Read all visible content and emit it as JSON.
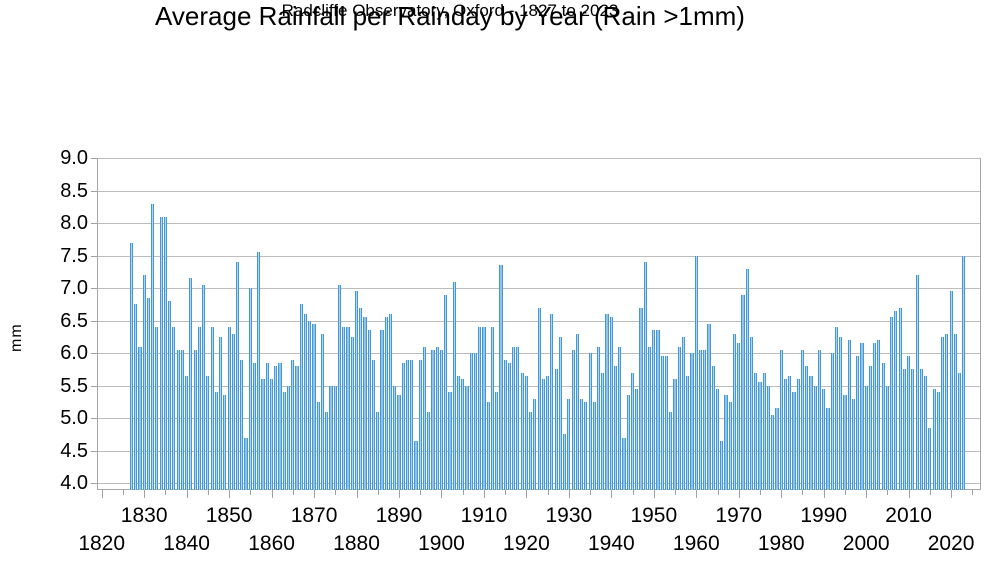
{
  "page": {
    "background": "#ffffff"
  },
  "chart_data": {
    "type": "bar",
    "title": "Average Rainfall per Rainday by Year (Rain >1mm)",
    "subtitle": "Radcliffe Observatory, Oxford - 1827 to 2023",
    "xlabel": "",
    "ylabel": "mm",
    "ylim": [
      3.9,
      9.0
    ],
    "xlim": [
      1820,
      2025
    ],
    "grid": "horizontal gridlines every 0.5",
    "legend_position": "none",
    "bar_color": "#4797d0",
    "bar_highlight_color": "#b9e2f8",
    "grid_color": "#bcbcbc",
    "axis_color": "#a6a6a6",
    "text_color": "#000000",
    "y_tick_values": [
      9.0,
      8.5,
      8.0,
      7.5,
      7.0,
      6.5,
      6.0,
      5.5,
      5.0,
      4.5,
      4.0
    ],
    "y_tick_labels": [
      "9.0",
      "8.5",
      "8.0",
      "7.5",
      "7.0",
      "6.5",
      "6.0",
      "5.5",
      "5.0",
      "4.5",
      "4.0"
    ],
    "x_label_rows": {
      "upper": [
        1830,
        1850,
        1870,
        1890,
        1910,
        1930,
        1950,
        1970,
        1990,
        2010
      ],
      "lower": [
        1820,
        1840,
        1860,
        1880,
        1900,
        1920,
        1940,
        1960,
        1980,
        2000,
        2020
      ]
    },
    "x_tick_minor_step": 5,
    "x_tick_major_step": 10,
    "year_start": 1827,
    "year_end": 2023,
    "values": [
      7.7,
      6.75,
      6.1,
      7.2,
      6.85,
      8.3,
      6.4,
      8.1,
      8.1,
      6.8,
      6.4,
      6.05,
      6.05,
      5.65,
      7.15,
      6.05,
      6.4,
      7.05,
      5.65,
      6.4,
      5.4,
      6.25,
      5.35,
      6.4,
      6.3,
      7.4,
      5.9,
      4.7,
      7.0,
      5.85,
      7.55,
      5.6,
      5.85,
      5.6,
      5.8,
      5.85,
      5.4,
      5.5,
      5.9,
      5.8,
      6.75,
      6.6,
      6.5,
      6.45,
      5.25,
      6.3,
      5.1,
      5.5,
      5.5,
      7.05,
      6.4,
      6.4,
      6.25,
      6.95,
      6.7,
      6.55,
      6.35,
      5.9,
      5.1,
      6.35,
      6.55,
      6.6,
      5.5,
      5.35,
      5.85,
      5.9,
      5.9,
      4.65,
      5.9,
      6.1,
      5.1,
      6.05,
      6.1,
      6.05,
      6.9,
      5.4,
      7.1,
      5.65,
      5.6,
      5.5,
      6.0,
      6.0,
      6.4,
      6.4,
      5.25,
      6.4,
      5.4,
      7.35,
      5.9,
      5.85,
      6.1,
      6.1,
      5.7,
      5.65,
      5.1,
      5.3,
      6.7,
      5.6,
      5.65,
      6.6,
      5.75,
      6.25,
      4.75,
      5.3,
      6.05,
      6.3,
      5.3,
      5.25,
      6.0,
      5.25,
      6.1,
      5.7,
      6.6,
      6.55,
      5.8,
      6.1,
      4.7,
      5.35,
      5.7,
      5.45,
      6.7,
      7.4,
      6.1,
      6.35,
      6.35,
      5.95,
      5.95,
      5.1,
      5.6,
      6.1,
      6.25,
      5.65,
      6.0,
      7.5,
      6.05,
      6.05,
      6.45,
      5.8,
      5.45,
      4.65,
      5.35,
      5.25,
      6.3,
      6.15,
      6.9,
      7.3,
      6.25,
      5.7,
      5.55,
      5.7,
      5.5,
      5.05,
      5.15,
      6.05,
      5.6,
      5.65,
      5.4,
      5.6,
      6.05,
      5.8,
      5.65,
      5.5,
      6.05,
      5.45,
      5.15,
      6.0,
      6.4,
      6.25,
      5.35,
      6.2,
      5.3,
      5.95,
      6.15,
      5.5,
      5.8,
      6.15,
      6.2,
      5.85,
      5.5,
      6.55,
      6.65,
      6.7,
      5.75,
      5.95,
      5.75,
      7.2,
      5.75,
      5.65,
      4.85,
      5.45,
      5.4,
      6.25,
      6.3,
      6.95,
      6.3,
      5.7,
      7.5
    ]
  }
}
